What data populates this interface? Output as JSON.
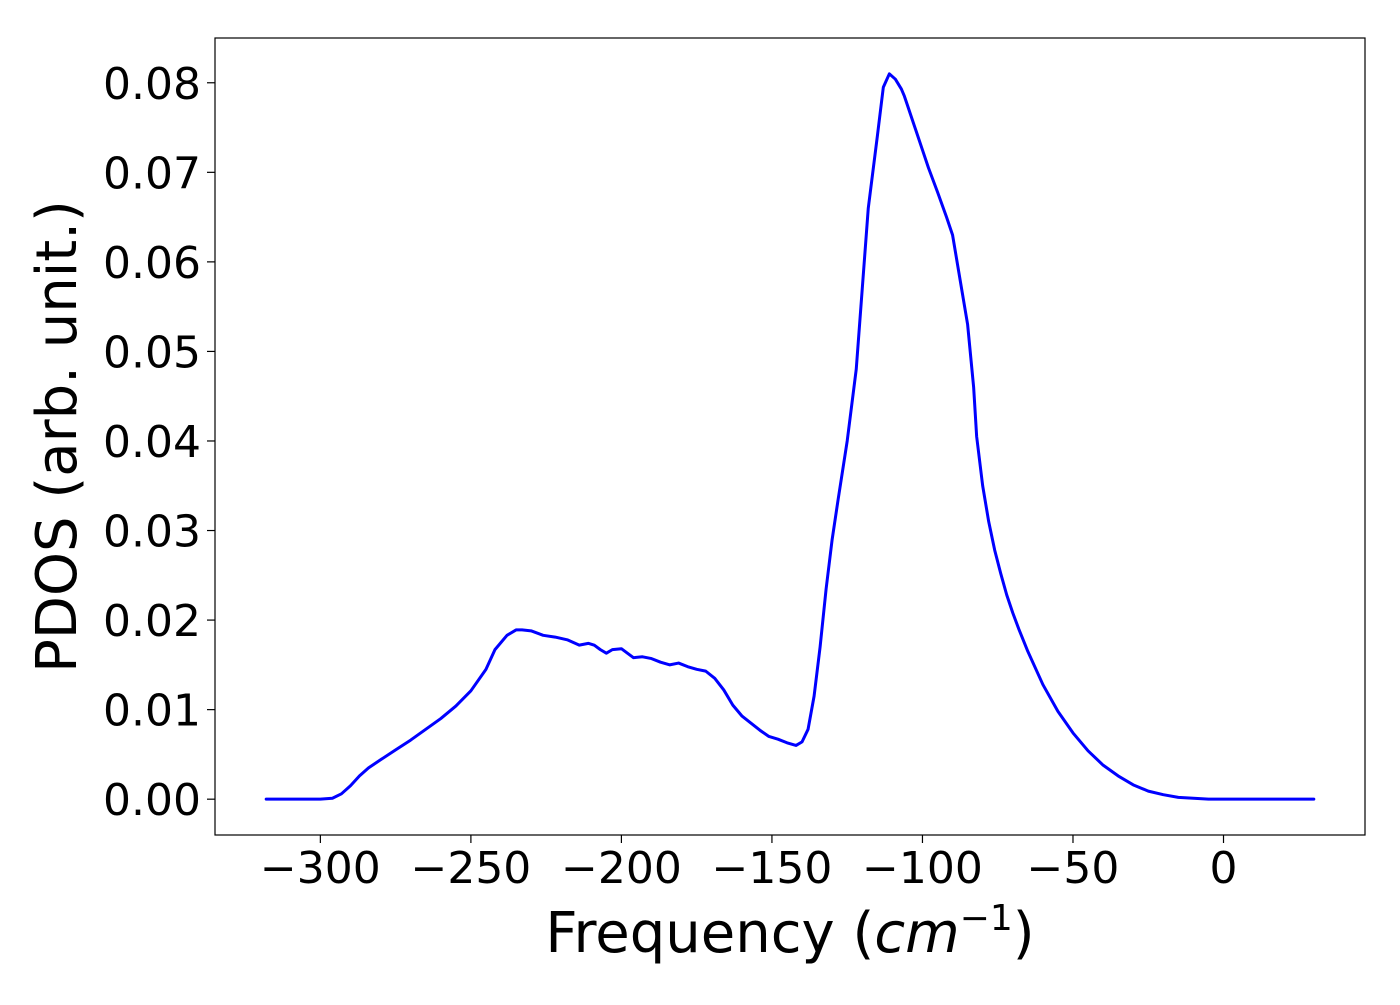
{
  "chart_data": {
    "type": "line",
    "title": "",
    "xlabel": "Frequency (",
    "xlabel_math_base": "cm",
    "xlabel_math_sup": "−1",
    "xlabel_close": ")",
    "ylabel": "PDOS (arb. unit.)",
    "xlim": [
      -335,
      47
    ],
    "ylim": [
      -0.004,
      0.085
    ],
    "grid": false,
    "x_ticks": [
      -300,
      -250,
      -200,
      -150,
      -100,
      -50,
      0
    ],
    "x_tick_labels": [
      "−300",
      "−250",
      "−200",
      "−150",
      "−100",
      "−50",
      "0"
    ],
    "y_ticks": [
      0.0,
      0.01,
      0.02,
      0.03,
      0.04,
      0.05,
      0.06,
      0.07,
      0.08
    ],
    "y_tick_labels": [
      "0.00",
      "0.01",
      "0.02",
      "0.03",
      "0.04",
      "0.05",
      "0.06",
      "0.07",
      "0.08"
    ],
    "series": [
      {
        "color": "#0000ff",
        "x": [
          -318,
          -310,
          -300,
          -296,
          -293,
          -290,
          -287,
          -284,
          -280,
          -275,
          -270,
          -265,
          -260,
          -255,
          -250,
          -245,
          -242,
          -238,
          -235,
          -233,
          -230,
          -226,
          -222,
          -218,
          -214,
          -211,
          -209,
          -207,
          -205,
          -203,
          -200,
          -198,
          -196,
          -193,
          -190,
          -187,
          -184,
          -181,
          -178,
          -175,
          -172,
          -169,
          -166,
          -163,
          -160,
          -157,
          -154,
          -151,
          -148,
          -145,
          -142,
          -140,
          -138,
          -136,
          -134,
          -132,
          -130,
          -128,
          -125,
          -122,
          -120,
          -118,
          -115,
          -113,
          -111,
          -109,
          -107,
          -106,
          -105,
          -104,
          -102,
          -100,
          -98,
          -95,
          -92,
          -90,
          -88,
          -85,
          -83,
          -82,
          -80,
          -78,
          -76,
          -74,
          -72,
          -70,
          -68,
          -65,
          -60,
          -55,
          -50,
          -45,
          -40,
          -35,
          -30,
          -25,
          -20,
          -15,
          -10,
          -5,
          0,
          10,
          20,
          30
        ],
        "y": [
          0.0,
          0.0,
          0.0,
          0.0001,
          0.0006,
          0.0015,
          0.0026,
          0.0035,
          0.0044,
          0.0055,
          0.0066,
          0.0078,
          0.009,
          0.0104,
          0.0121,
          0.0145,
          0.0167,
          0.0183,
          0.0189,
          0.0189,
          0.0188,
          0.0183,
          0.0181,
          0.0178,
          0.0172,
          0.0174,
          0.0172,
          0.0167,
          0.0163,
          0.0167,
          0.0168,
          0.0163,
          0.0158,
          0.0159,
          0.0157,
          0.0153,
          0.015,
          0.0152,
          0.0148,
          0.0145,
          0.0143,
          0.0135,
          0.0122,
          0.0105,
          0.0093,
          0.0085,
          0.0077,
          0.007,
          0.0067,
          0.0063,
          0.006,
          0.0064,
          0.0078,
          0.0115,
          0.017,
          0.0235,
          0.029,
          0.0335,
          0.04,
          0.048,
          0.057,
          0.066,
          0.074,
          0.0795,
          0.081,
          0.0804,
          0.0793,
          0.0785,
          0.0775,
          0.0765,
          0.0745,
          0.0725,
          0.0705,
          0.0678,
          0.065,
          0.063,
          0.059,
          0.053,
          0.046,
          0.0405,
          0.035,
          0.031,
          0.0278,
          0.0252,
          0.0228,
          0.0208,
          0.019,
          0.0165,
          0.0128,
          0.0098,
          0.0074,
          0.0054,
          0.0038,
          0.0026,
          0.0016,
          0.0009,
          0.0005,
          0.0002,
          0.0001,
          0.0,
          0.0,
          0.0,
          0.0,
          0.0
        ]
      }
    ]
  }
}
